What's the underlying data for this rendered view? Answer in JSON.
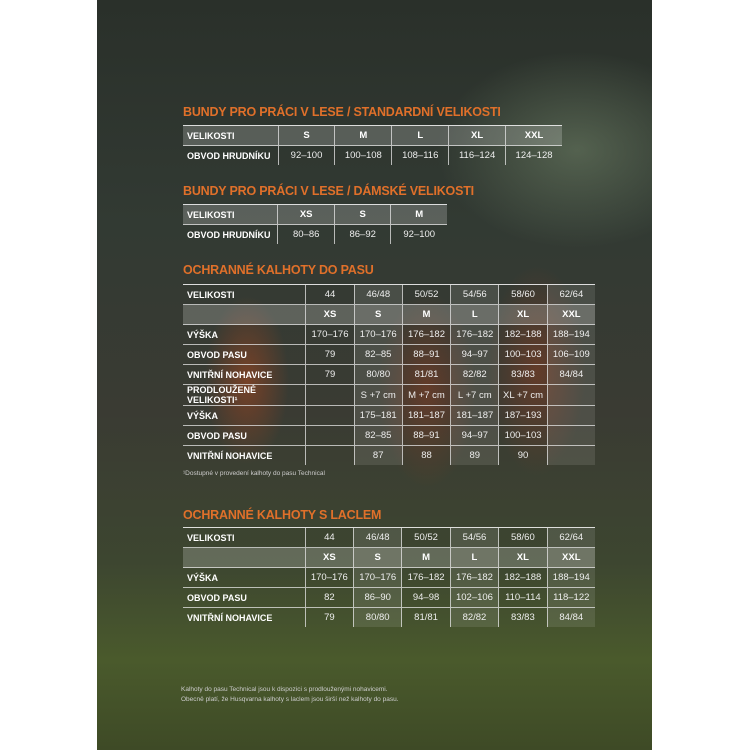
{
  "sections": [
    {
      "title": "BUNDY PRO PRÁCI V LESE / STANDARDNÍ VELIKOSTI",
      "rows": [
        {
          "header": true,
          "cells": [
            "VELIKOSTI",
            "S",
            "M",
            "L",
            "XL",
            "XXL"
          ]
        },
        {
          "header": false,
          "cells": [
            "OBVOD HRUDNÍKU",
            "92–100",
            "100–108",
            "108–116",
            "116–124",
            "124–128"
          ]
        }
      ]
    },
    {
      "title": "BUNDY PRO PRÁCI V LESE / DÁMSKÉ VELIKOSTI",
      "rows": [
        {
          "header": true,
          "cells": [
            "VELIKOSTI",
            "XS",
            "S",
            "M"
          ]
        },
        {
          "header": false,
          "cells": [
            "OBVOD HRUDNÍKU",
            "80–86",
            "86–92",
            "92–100"
          ]
        }
      ]
    },
    {
      "title": "OCHRANNÉ KALHOTY DO PASU",
      "rows": [
        {
          "header": false,
          "cells": [
            "VELIKOSTI",
            "44",
            "46/48",
            "50/52",
            "54/56",
            "58/60",
            "62/64"
          ]
        },
        {
          "header": true,
          "cells": [
            "",
            "XS",
            "S",
            "M",
            "L",
            "XL",
            "XXL"
          ]
        },
        {
          "header": false,
          "cells": [
            "VÝŠKA",
            "170–176",
            "170–176",
            "176–182",
            "176–182",
            "182–188",
            "188–194"
          ]
        },
        {
          "header": false,
          "cells": [
            "OBVOD PASU",
            "79",
            "82–85",
            "88–91",
            "94–97",
            "100–103",
            "106–109"
          ]
        },
        {
          "header": false,
          "cells": [
            "VNITŘNÍ NOHAVICE",
            "79",
            "80/80",
            "81/81",
            "82/82",
            "83/83",
            "84/84"
          ]
        },
        {
          "header": false,
          "cells": [
            "PRODLOUŽENÉ VELIKOSTI¹",
            "",
            "S +7 cm",
            "M +7 cm",
            "L +7 cm",
            "XL +7 cm",
            ""
          ]
        },
        {
          "header": false,
          "cells": [
            "VÝŠKA",
            "",
            "175–181",
            "181–187",
            "181–187",
            "187–193",
            ""
          ]
        },
        {
          "header": false,
          "cells": [
            "OBVOD PASU",
            "",
            "82–85",
            "88–91",
            "94–97",
            "100–103",
            ""
          ]
        },
        {
          "header": false,
          "cells": [
            "VNITŘNÍ NOHAVICE",
            "",
            "87",
            "88",
            "89",
            "90",
            ""
          ]
        }
      ],
      "footnote": "¹Dostupné v provedení kalhoty do pasu Technical"
    },
    {
      "title": "OCHRANNÉ KALHOTY S LACLEM",
      "rows": [
        {
          "header": false,
          "cells": [
            "VELIKOSTI",
            "44",
            "46/48",
            "50/52",
            "54/56",
            "58/60",
            "62/64"
          ]
        },
        {
          "header": true,
          "cells": [
            "",
            "XS",
            "S",
            "M",
            "L",
            "XL",
            "XXL"
          ]
        },
        {
          "header": false,
          "cells": [
            "VÝŠKA",
            "170–176",
            "170–176",
            "176–182",
            "176–182",
            "182–188",
            "188–194"
          ]
        },
        {
          "header": false,
          "cells": [
            "OBVOD PASU",
            "82",
            "86–90",
            "94–98",
            "102–106",
            "110–114",
            "118–122"
          ]
        },
        {
          "header": false,
          "cells": [
            "VNITŘNÍ NOHAVICE",
            "79",
            "80/80",
            "81/81",
            "82/82",
            "83/83",
            "84/84"
          ]
        }
      ]
    }
  ],
  "footer_notes": [
    "Kalhoty do pasu Technical jsou k dispozici s prodlouženými nohavicemi.",
    "Obecně platí, že Husqvarna kalhoty s laclem jsou širší než kalhoty do pasu."
  ],
  "colors": {
    "accent": "#e0702a"
  }
}
